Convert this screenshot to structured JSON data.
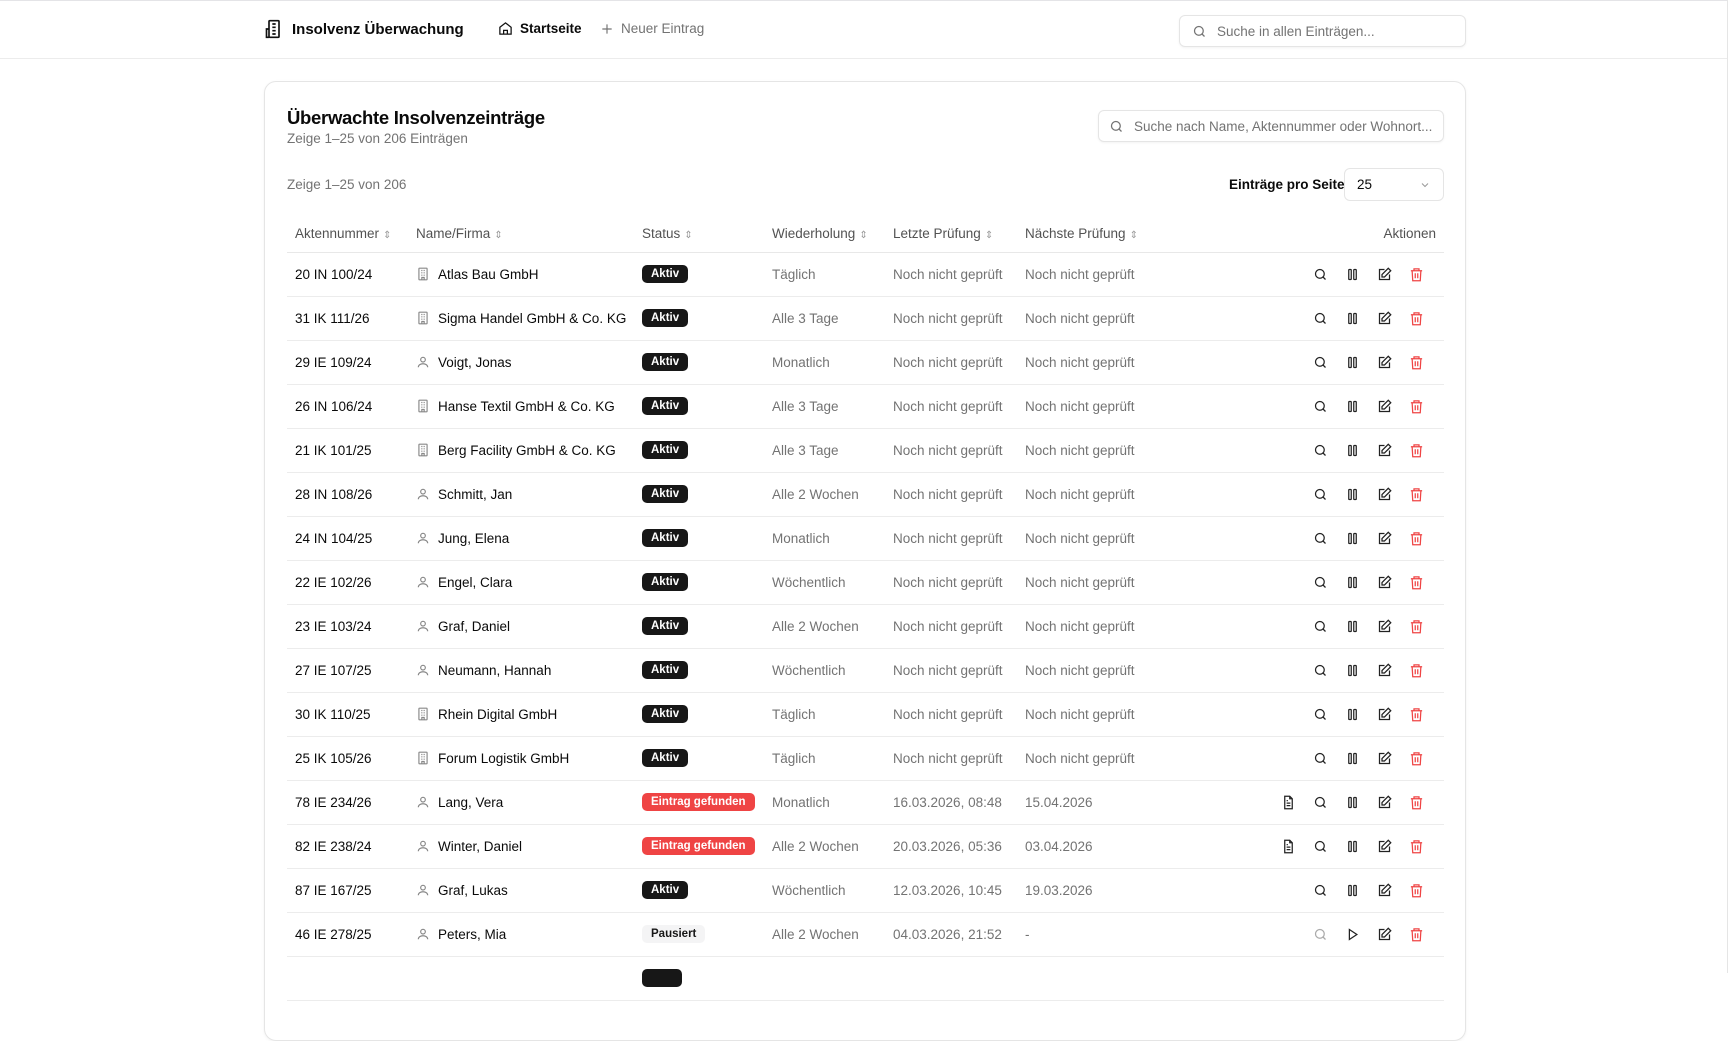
{
  "header": {
    "app_title": "Insolvenz Überwachung",
    "nav": [
      {
        "label": "Startseite",
        "icon": "home-icon"
      },
      {
        "label": "Neuer Eintrag",
        "icon": "plus-icon"
      }
    ],
    "search_placeholder": "Suche in allen Einträgen..."
  },
  "card": {
    "title": "Überwachte Insolvenzeinträge",
    "subtitle": "Zeige 1–25 von 206 Einträgen",
    "search_placeholder": "Suche nach Name, Aktennummer oder Wohnort...",
    "count_text": "Zeige 1–25 von 206",
    "per_page_label": "Einträge pro Seite",
    "per_page_value": "25"
  },
  "colors": {
    "accent": "#171717",
    "found": "#ef4444",
    "delete": "#ef4444"
  },
  "table": {
    "columns": [
      "Aktennummer",
      "Name/Firma",
      "Status",
      "Wiederholung",
      "Letzte Prüfung",
      "Nächste Prüfung",
      "Aktionen"
    ],
    "rows": [
      {
        "az": "20 IN 100/24",
        "name": "Atlas Bau GmbH",
        "type": "company",
        "status": "Aktiv",
        "rep": "Täglich",
        "last": "Noch nicht geprüft",
        "next": "Noch nicht geprüft"
      },
      {
        "az": "31 IK 111/26",
        "name": "Sigma Handel GmbH & Co. KG",
        "type": "company",
        "status": "Aktiv",
        "rep": "Alle 3 Tage",
        "last": "Noch nicht geprüft",
        "next": "Noch nicht geprüft"
      },
      {
        "az": "29 IE 109/24",
        "name": "Voigt, Jonas",
        "type": "person",
        "status": "Aktiv",
        "rep": "Monatlich",
        "last": "Noch nicht geprüft",
        "next": "Noch nicht geprüft"
      },
      {
        "az": "26 IN 106/24",
        "name": "Hanse Textil GmbH & Co. KG",
        "type": "company",
        "status": "Aktiv",
        "rep": "Alle 3 Tage",
        "last": "Noch nicht geprüft",
        "next": "Noch nicht geprüft"
      },
      {
        "az": "21 IK 101/25",
        "name": "Berg Facility GmbH & Co. KG",
        "type": "company",
        "status": "Aktiv",
        "rep": "Alle 3 Tage",
        "last": "Noch nicht geprüft",
        "next": "Noch nicht geprüft"
      },
      {
        "az": "28 IN 108/26",
        "name": "Schmitt, Jan",
        "type": "person",
        "status": "Aktiv",
        "rep": "Alle 2 Wochen",
        "last": "Noch nicht geprüft",
        "next": "Noch nicht geprüft"
      },
      {
        "az": "24 IN 104/25",
        "name": "Jung, Elena",
        "type": "person",
        "status": "Aktiv",
        "rep": "Monatlich",
        "last": "Noch nicht geprüft",
        "next": "Noch nicht geprüft"
      },
      {
        "az": "22 IE 102/26",
        "name": "Engel, Clara",
        "type": "person",
        "status": "Aktiv",
        "rep": "Wöchentlich",
        "last": "Noch nicht geprüft",
        "next": "Noch nicht geprüft"
      },
      {
        "az": "23 IE 103/24",
        "name": "Graf, Daniel",
        "type": "person",
        "status": "Aktiv",
        "rep": "Alle 2 Wochen",
        "last": "Noch nicht geprüft",
        "next": "Noch nicht geprüft"
      },
      {
        "az": "27 IE 107/25",
        "name": "Neumann, Hannah",
        "type": "person",
        "status": "Aktiv",
        "rep": "Wöchentlich",
        "last": "Noch nicht geprüft",
        "next": "Noch nicht geprüft"
      },
      {
        "az": "30 IK 110/25",
        "name": "Rhein Digital GmbH",
        "type": "company",
        "status": "Aktiv",
        "rep": "Täglich",
        "last": "Noch nicht geprüft",
        "next": "Noch nicht geprüft"
      },
      {
        "az": "25 IK 105/26",
        "name": "Forum Logistik GmbH",
        "type": "company",
        "status": "Aktiv",
        "rep": "Täglich",
        "last": "Noch nicht geprüft",
        "next": "Noch nicht geprüft"
      },
      {
        "az": "78 IE 234/26",
        "name": "Lang, Vera",
        "type": "person",
        "status": "Eintrag gefunden",
        "rep": "Monatlich",
        "last": "16.03.2026, 08:48",
        "next": "15.04.2026"
      },
      {
        "az": "82 IE 238/24",
        "name": "Winter, Daniel",
        "type": "person",
        "status": "Eintrag gefunden",
        "rep": "Alle 2 Wochen",
        "last": "20.03.2026, 05:36",
        "next": "03.04.2026"
      },
      {
        "az": "87 IE 167/25",
        "name": "Graf, Lukas",
        "type": "person",
        "status": "Aktiv",
        "rep": "Wöchentlich",
        "last": "12.03.2026, 10:45",
        "next": "19.03.2026"
      },
      {
        "az": "46 IE 278/25",
        "name": "Peters, Mia",
        "type": "person",
        "status": "Pausiert",
        "rep": "Alle 2 Wochen",
        "last": "04.03.2026, 21:52",
        "next": "-"
      }
    ]
  }
}
